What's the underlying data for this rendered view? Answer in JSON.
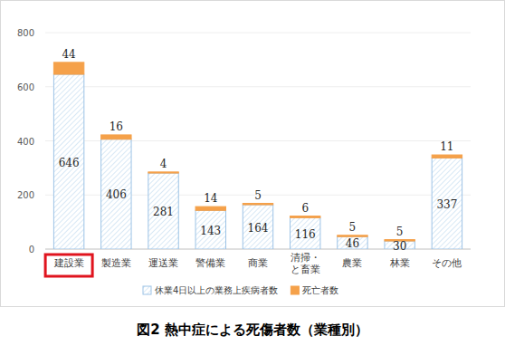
{
  "chart_data": {
    "type": "bar",
    "title": "図2 熱中症による死傷者数（業種別）",
    "categories": [
      "建設業",
      "製造業",
      "運送業",
      "警備業",
      "商業",
      "清掃・\nと畜業",
      "農業",
      "林業",
      "その他"
    ],
    "series": [
      {
        "name": "休業4日以上の業務上疾病者数",
        "color": "#9dc3e6",
        "values": [
          646,
          406,
          281,
          143,
          164,
          116,
          46,
          30,
          337
        ]
      },
      {
        "name": "死亡者数",
        "color": "#f5a14a",
        "values": [
          44,
          16,
          4,
          14,
          5,
          6,
          5,
          5,
          11
        ]
      }
    ],
    "ylim": [
      0,
      800
    ],
    "yticks": [
      0,
      200,
      400,
      600,
      800
    ],
    "stacked": true,
    "data_labels": true,
    "grid": true,
    "legend": "bottom"
  }
}
